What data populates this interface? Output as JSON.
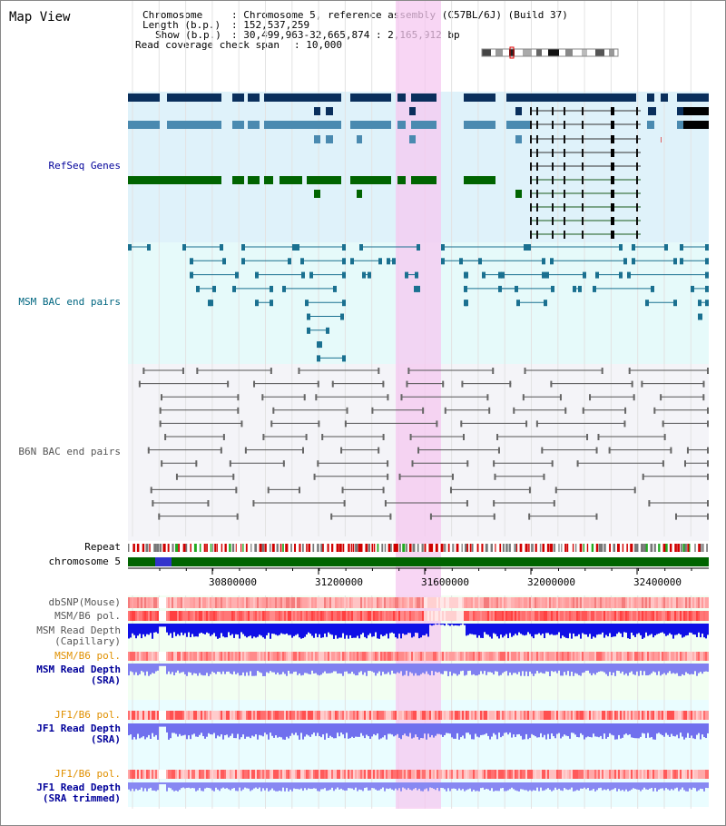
{
  "title": "Map View",
  "info": {
    "chromosome_key": "Chromosome",
    "chromosome_val": ": Chromosome 5, reference assembly (C57BL/6J) (Build 37)",
    "length_key": "Length (b.p.)",
    "length_val": ": 152,537,259",
    "show_key": "Show (b.p.)",
    "show_val": ": 30,499,963-32,665,874 : 2,165,912 bp",
    "coverage_key": "Read coverage check span",
    "coverage_val": ": 10,000"
  },
  "tracks": {
    "refseq": "RefSeq Genes",
    "msm_bac": "MSM BAC end pairs",
    "b6n_bac": "B6N BAC end pairs",
    "repeat": "Repeat",
    "chromosome": "chromosome 5",
    "dbsnp": "dbSNP(Mouse)",
    "msm_b6_pol_1": "MSM/B6 pol.",
    "msm_read_depth_cap_1": "MSM Read Depth",
    "msm_read_depth_cap_2": "(Capillary)",
    "msm_b6_pol_2": "MSM/B6 pol.",
    "msm_read_depth_sra_1": "MSM Read Depth",
    "msm_read_depth_sra_2": "(SRA)",
    "jf1_b6_pol_1": "JF1/B6 pol.",
    "jf1_read_depth_1": "JF1 Read Depth",
    "jf1_read_depth_2": "(SRA)",
    "jf1_b6_pol_2": "JF1/B6 pol.",
    "jf1_read_depth_trim_1": "JF1 Read Depth",
    "jf1_read_depth_trim_2": "(SRA trimmed)"
  },
  "axis": {
    "ticks": [
      "30800000",
      "31200000",
      "31600000",
      "32000000",
      "32400000"
    ]
  },
  "colors": {
    "refseq_bg": "#dff2fa",
    "msm_bg": "#e6fafa",
    "b6n_bg": "#f4f4f8",
    "highlight": "#f5c8f0",
    "chromosome_bar": "#006400",
    "label_blue": "#00009a",
    "label_teal": "#006680",
    "label_orange": "#e09000"
  }
}
